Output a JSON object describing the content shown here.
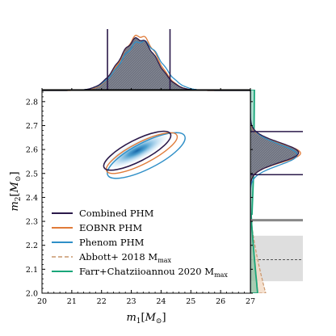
{
  "chart_data": {
    "type": "scatter",
    "subtype": "corner-plot",
    "title": "",
    "xlabel": "m_1[M_⊙]",
    "ylabel": "m_2[M_⊙]",
    "xlabel_parts": {
      "base": "m",
      "sub": "1",
      "unit": "M",
      "unit_sub": "⊙"
    },
    "ylabel_parts": {
      "base": "m",
      "sub": "2",
      "unit": "M",
      "unit_sub": "⊙"
    },
    "xlim": [
      20,
      27
    ],
    "ylim": [
      2.0,
      2.85
    ],
    "xticks": [
      "20",
      "21",
      "22",
      "23",
      "24",
      "25",
      "26",
      "27"
    ],
    "yticks": [
      "2.0",
      "2.1",
      "2.2",
      "2.3",
      "2.4",
      "2.5",
      "2.6",
      "2.7",
      "2.8"
    ],
    "grid": false,
    "legend_position": "lower-left",
    "legend": [
      {
        "label": "Combined PHM",
        "color": "#2b1a4a",
        "style": "solid"
      },
      {
        "label": "EOBNR PHM",
        "color": "#e07b39",
        "style": "solid"
      },
      {
        "label": "Phenom PHM",
        "color": "#2f8fc7",
        "style": "solid"
      },
      {
        "label": "Abbott+ 2018 M",
        "label_sub": "max",
        "color": "#c9956b",
        "style": "dashed"
      },
      {
        "label": "Farr+Chatziioannou 2020 M",
        "label_sub": "max",
        "color": "#1aa67a",
        "style": "solid"
      }
    ],
    "series": [
      {
        "name": "Combined PHM",
        "center": [
          23.2,
          2.595
        ],
        "width": 2.5,
        "height": 0.09,
        "angle_deg": -27
      },
      {
        "name": "EOBNR PHM",
        "center": [
          23.35,
          2.585
        ],
        "width": 2.65,
        "height": 0.09,
        "angle_deg": -27
      },
      {
        "name": "Phenom PHM",
        "center": [
          23.5,
          2.575
        ],
        "width": 2.9,
        "height": 0.11,
        "angle_deg": -27
      }
    ],
    "m1_interval_lines": [
      22.2,
      24.3
    ],
    "m2_interval_lines": [
      2.495,
      2.675
    ],
    "m1_marginal_peak": 23.2,
    "m2_marginal_peak": 2.59,
    "abbott_mmax": {
      "median": 2.14,
      "interval": [
        2.05,
        2.24
      ]
    },
    "farr_mmax_line": 2.305,
    "colors": {
      "combined": "#2b1a4a",
      "eobnr": "#e07b39",
      "phenom": "#2f8fc7",
      "abbott": "#c9956b",
      "farr": "#1aa67a",
      "fill_gray": "#6f7380",
      "band_gray": "#dedede"
    }
  }
}
